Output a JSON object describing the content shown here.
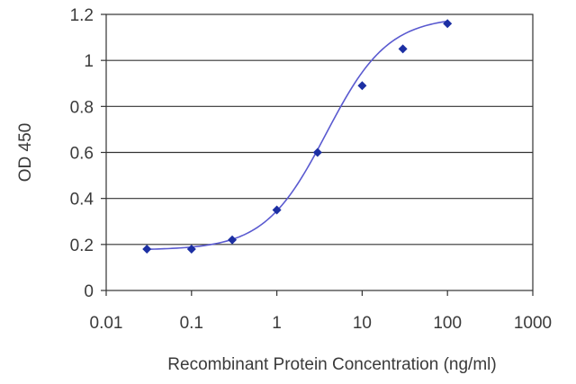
{
  "chart_data": {
    "type": "scatter",
    "title": "",
    "xlabel": "Recombinant Protein Concentration (ng/ml)",
    "ylabel": "OD 450",
    "x_scale": "log",
    "xlim": [
      0.01,
      1000
    ],
    "ylim": [
      0,
      1.2
    ],
    "x_ticks": [
      "0.01",
      "0.1",
      "1",
      "10",
      "100",
      "1000"
    ],
    "y_ticks": [
      "0",
      "0.2",
      "0.4",
      "0.6",
      "0.8",
      "1",
      "1.2"
    ],
    "grid": "horizontal",
    "legend": "none",
    "series": [
      {
        "x": [
          0.03,
          0.1,
          0.3,
          1,
          3,
          10,
          30,
          100
        ],
        "y": [
          0.18,
          0.18,
          0.22,
          0.35,
          0.6,
          0.89,
          1.05,
          1.16
        ],
        "color": "#1c2fa3",
        "line_color": "#5a5ad0",
        "marker": "diamond",
        "fitted_curve": true
      }
    ]
  }
}
